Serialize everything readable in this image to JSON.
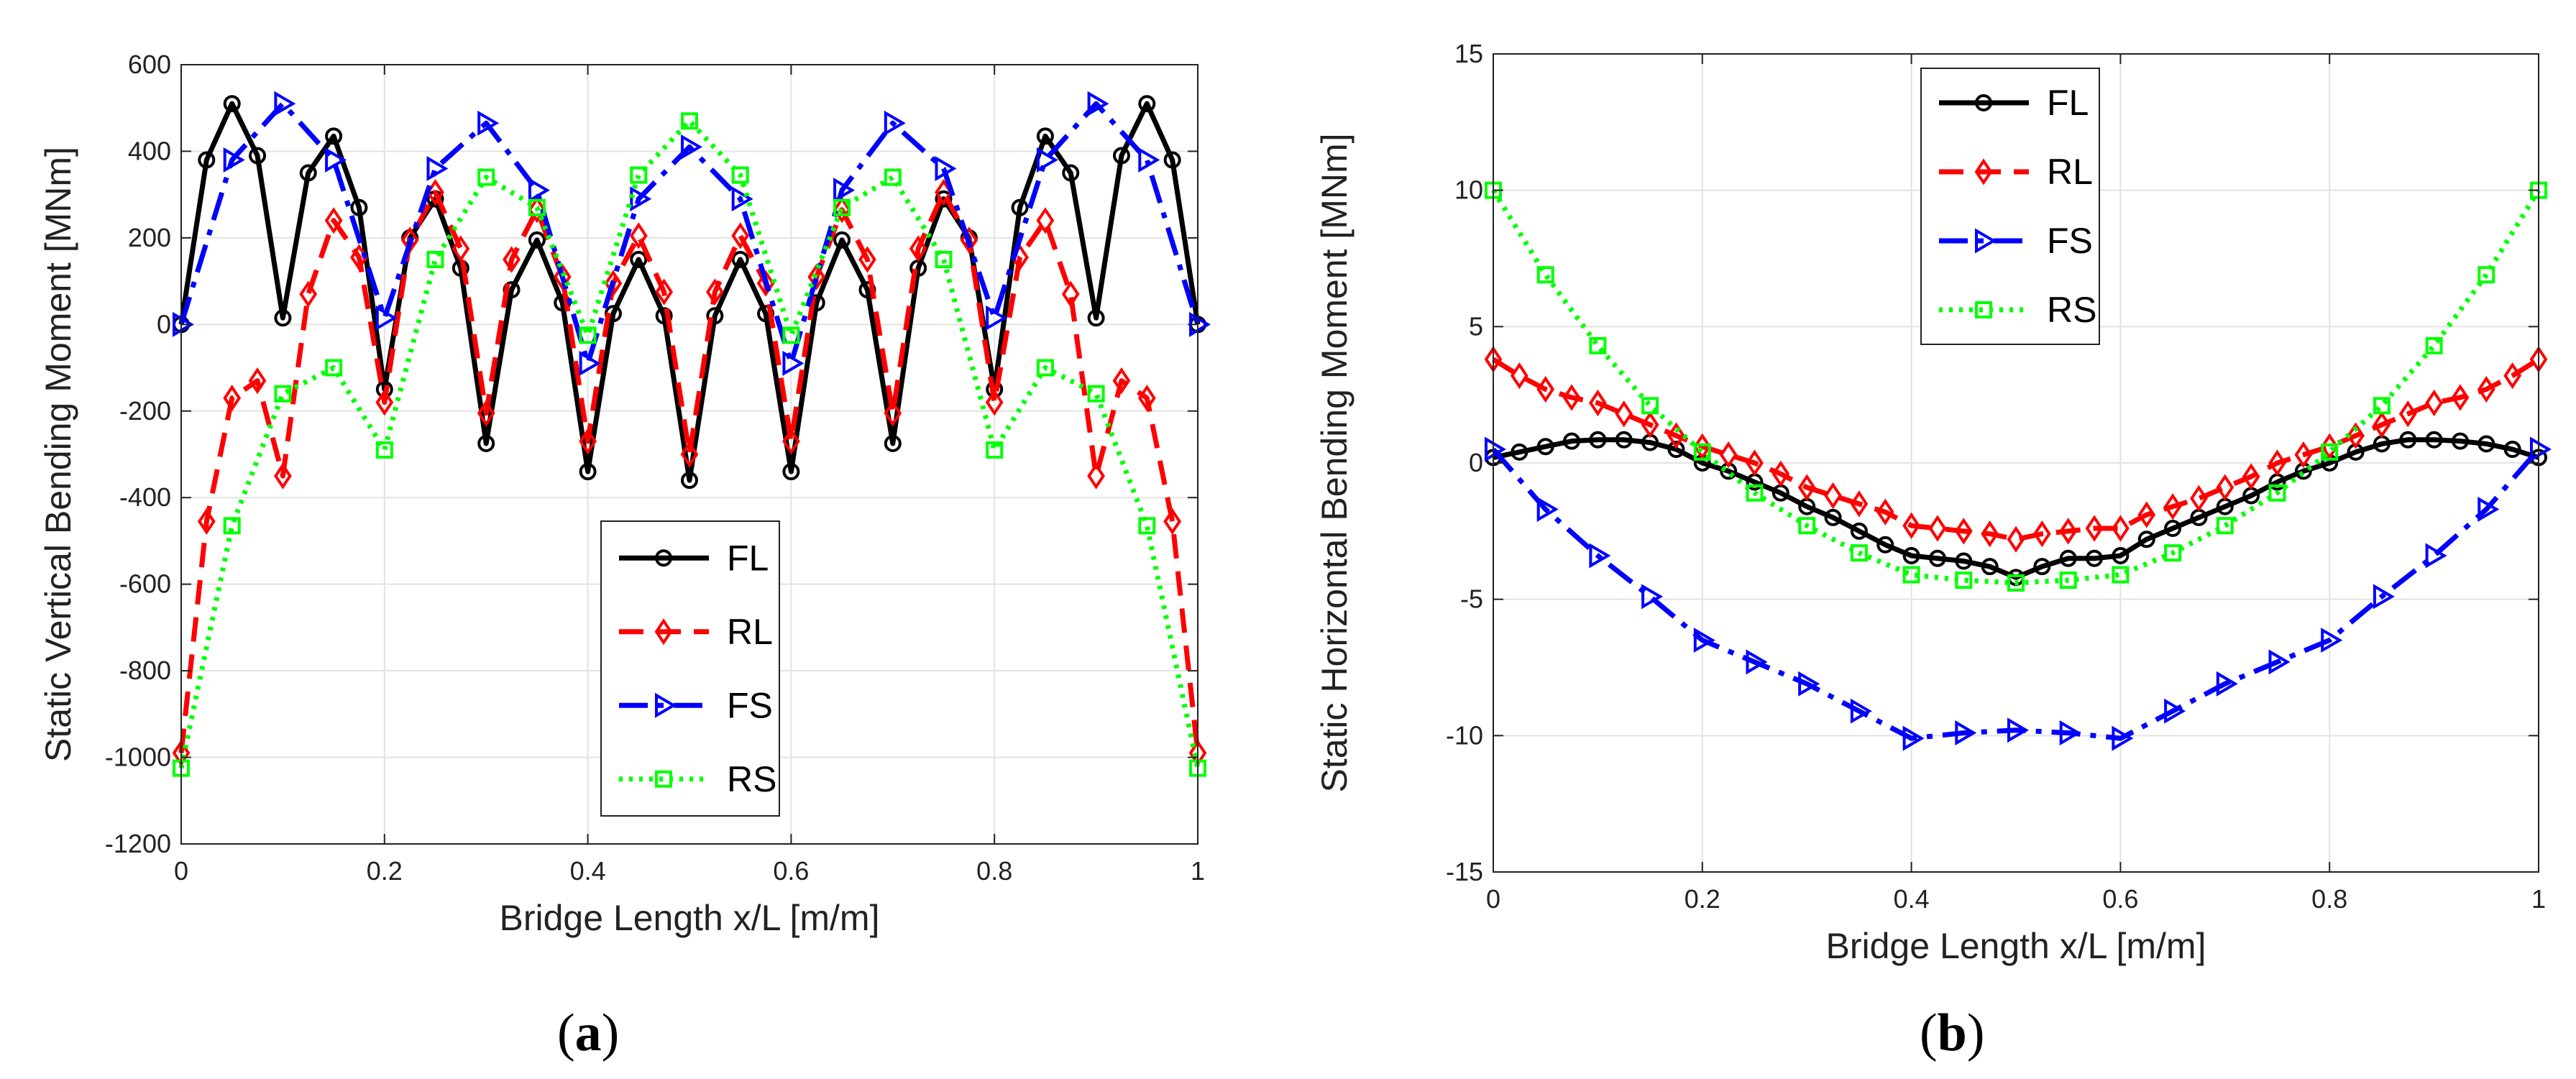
{
  "panels": [
    {
      "label_open": "(",
      "label_letter": "a",
      "label_close": ")"
    },
    {
      "label_open": "(",
      "label_letter": "b",
      "label_close": ")"
    }
  ],
  "colors": {
    "FL": "#000000",
    "RL": "#ff0000",
    "FS": "#0000ff",
    "RS": "#00ff00"
  },
  "chart_data": [
    {
      "type": "line",
      "xlabel": "Bridge Length x/L [m/m]",
      "ylabel": "Static Vertical Bending Moment [MNm]",
      "xlim": [
        0,
        1
      ],
      "ylim": [
        -1200,
        600
      ],
      "xticks": [
        0,
        0.2,
        0.4,
        0.6,
        0.8,
        1
      ],
      "xtick_labels": [
        "0",
        "0.2",
        "0.4",
        "0.6",
        "0.8",
        "1"
      ],
      "yticks": [
        -1200,
        -1000,
        -800,
        -600,
        -400,
        -200,
        0,
        200,
        400,
        600
      ],
      "ytick_labels": [
        "-1200",
        "-1000",
        "-800",
        "-600",
        "-400",
        "-200",
        "0",
        "200",
        "400",
        "600"
      ],
      "grid": true,
      "legend": "lower-center",
      "series": [
        {
          "name": "FL",
          "x": [
            0,
            0.025,
            0.05,
            0.075,
            0.1,
            0.125,
            0.15,
            0.175,
            0.2,
            0.225,
            0.25,
            0.275,
            0.3,
            0.325,
            0.35,
            0.375,
            0.4,
            0.425,
            0.45,
            0.475,
            0.5,
            0.525,
            0.55,
            0.575,
            0.6,
            0.625,
            0.65,
            0.675,
            0.7,
            0.725,
            0.75,
            0.775,
            0.8,
            0.825,
            0.85,
            0.875,
            0.9,
            0.925,
            0.95,
            0.975,
            1
          ],
          "y": [
            0,
            380,
            510,
            390,
            15,
            350,
            435,
            270,
            -150,
            200,
            290,
            130,
            -275,
            80,
            195,
            50,
            -340,
            25,
            150,
            20,
            -360,
            20,
            150,
            25,
            -340,
            50,
            195,
            80,
            -275,
            130,
            290,
            200,
            -150,
            270,
            435,
            350,
            15,
            390,
            510,
            380,
            0
          ]
        },
        {
          "name": "RL",
          "x": [
            0,
            0.025,
            0.05,
            0.075,
            0.1,
            0.125,
            0.15,
            0.175,
            0.2,
            0.225,
            0.25,
            0.275,
            0.3,
            0.325,
            0.35,
            0.375,
            0.4,
            0.425,
            0.45,
            0.475,
            0.5,
            0.525,
            0.55,
            0.575,
            0.6,
            0.625,
            0.65,
            0.675,
            0.7,
            0.725,
            0.75,
            0.775,
            0.8,
            0.825,
            0.85,
            0.875,
            0.9,
            0.925,
            0.95,
            0.975,
            1
          ],
          "y": [
            -990,
            -455,
            -170,
            -130,
            -350,
            70,
            240,
            155,
            -180,
            195,
            305,
            175,
            -205,
            150,
            265,
            110,
            -270,
            95,
            205,
            75,
            -300,
            75,
            205,
            95,
            -270,
            110,
            265,
            150,
            -205,
            175,
            305,
            195,
            -180,
            155,
            240,
            70,
            -350,
            -130,
            -170,
            -455,
            -990
          ]
        },
        {
          "name": "FS",
          "x": [
            0,
            0.05,
            0.1,
            0.15,
            0.2,
            0.25,
            0.3,
            0.35,
            0.4,
            0.45,
            0.5,
            0.55,
            0.6,
            0.65,
            0.7,
            0.75,
            0.8,
            0.85,
            0.9,
            0.95,
            1
          ],
          "y": [
            0,
            380,
            510,
            380,
            15,
            360,
            465,
            310,
            -90,
            290,
            410,
            290,
            -90,
            310,
            465,
            360,
            15,
            380,
            510,
            380,
            0
          ]
        },
        {
          "name": "RS",
          "x": [
            0,
            0.05,
            0.1,
            0.15,
            0.2,
            0.25,
            0.3,
            0.35,
            0.4,
            0.45,
            0.5,
            0.55,
            0.6,
            0.65,
            0.7,
            0.75,
            0.8,
            0.85,
            0.9,
            0.95,
            1
          ],
          "y": [
            -1025,
            -465,
            -160,
            -100,
            -290,
            150,
            340,
            270,
            -25,
            345,
            470,
            345,
            -25,
            270,
            340,
            150,
            -290,
            -100,
            -160,
            -465,
            -1025
          ]
        }
      ]
    },
    {
      "type": "line",
      "xlabel": "Bridge Length x/L [m/m]",
      "ylabel": "Static Horizontal Bending Moment [MNm]",
      "xlim": [
        0,
        1
      ],
      "ylim": [
        -15,
        15
      ],
      "xticks": [
        0,
        0.2,
        0.4,
        0.6,
        0.8,
        1
      ],
      "xtick_labels": [
        "0",
        "0.2",
        "0.4",
        "0.6",
        "0.8",
        "1"
      ],
      "yticks": [
        -15,
        -10,
        -5,
        0,
        5,
        10,
        15
      ],
      "ytick_labels": [
        "-15",
        "-10",
        "-5",
        "0",
        "5",
        "10",
        "15"
      ],
      "grid": true,
      "legend": "top-left",
      "series": [
        {
          "name": "FL",
          "x": [
            0,
            0.025,
            0.05,
            0.075,
            0.1,
            0.125,
            0.15,
            0.175,
            0.2,
            0.225,
            0.25,
            0.275,
            0.3,
            0.325,
            0.35,
            0.375,
            0.4,
            0.425,
            0.45,
            0.475,
            0.5,
            0.525,
            0.55,
            0.575,
            0.6,
            0.625,
            0.65,
            0.675,
            0.7,
            0.725,
            0.75,
            0.775,
            0.8,
            0.825,
            0.85,
            0.875,
            0.9,
            0.925,
            0.95,
            0.975,
            1
          ],
          "y": [
            0.2,
            0.4,
            0.6,
            0.8,
            0.85,
            0.85,
            0.75,
            0.5,
            0.0,
            -0.3,
            -0.7,
            -1.1,
            -1.6,
            -2.0,
            -2.5,
            -3.0,
            -3.4,
            -3.5,
            -3.6,
            -3.8,
            -4.2,
            -3.8,
            -3.5,
            -3.5,
            -3.4,
            -2.8,
            -2.4,
            -2.0,
            -1.6,
            -1.2,
            -0.7,
            -0.3,
            0.0,
            0.4,
            0.7,
            0.85,
            0.85,
            0.8,
            0.7,
            0.5,
            0.2
          ]
        },
        {
          "name": "RL",
          "x": [
            0,
            0.025,
            0.05,
            0.075,
            0.1,
            0.125,
            0.15,
            0.175,
            0.2,
            0.225,
            0.25,
            0.275,
            0.3,
            0.325,
            0.35,
            0.375,
            0.4,
            0.425,
            0.45,
            0.475,
            0.5,
            0.525,
            0.55,
            0.575,
            0.6,
            0.625,
            0.65,
            0.675,
            0.7,
            0.725,
            0.75,
            0.775,
            0.8,
            0.825,
            0.85,
            0.875,
            0.9,
            0.925,
            0.95,
            0.975,
            1
          ],
          "y": [
            3.8,
            3.2,
            2.7,
            2.4,
            2.2,
            1.8,
            1.4,
            1.0,
            0.6,
            0.3,
            0.0,
            -0.4,
            -0.9,
            -1.2,
            -1.5,
            -1.8,
            -2.3,
            -2.4,
            -2.5,
            -2.6,
            -2.8,
            -2.6,
            -2.5,
            -2.4,
            -2.4,
            -1.9,
            -1.6,
            -1.3,
            -0.9,
            -0.5,
            0.0,
            0.3,
            0.6,
            1.0,
            1.4,
            1.8,
            2.2,
            2.4,
            2.7,
            3.2,
            3.8
          ]
        },
        {
          "name": "FS",
          "x": [
            0,
            0.05,
            0.1,
            0.15,
            0.2,
            0.25,
            0.3,
            0.35,
            0.4,
            0.45,
            0.5,
            0.55,
            0.6,
            0.65,
            0.7,
            0.75,
            0.8,
            0.85,
            0.9,
            0.95,
            1
          ],
          "y": [
            0.5,
            -1.7,
            -3.4,
            -4.9,
            -6.5,
            -7.3,
            -8.1,
            -9.1,
            -10.1,
            -9.9,
            -9.8,
            -9.9,
            -10.1,
            -9.1,
            -8.1,
            -7.3,
            -6.5,
            -4.9,
            -3.4,
            -1.7,
            0.5
          ]
        },
        {
          "name": "RS",
          "x": [
            0,
            0.05,
            0.1,
            0.15,
            0.2,
            0.25,
            0.3,
            0.35,
            0.4,
            0.45,
            0.5,
            0.55,
            0.6,
            0.65,
            0.7,
            0.75,
            0.8,
            0.85,
            0.9,
            0.95,
            1
          ],
          "y": [
            10,
            6.9,
            4.3,
            2.1,
            0.4,
            -1.1,
            -2.3,
            -3.3,
            -4.1,
            -4.3,
            -4.4,
            -4.3,
            -4.1,
            -3.3,
            -2.3,
            -1.1,
            0.4,
            2.1,
            4.3,
            6.9,
            10
          ]
        }
      ]
    }
  ]
}
